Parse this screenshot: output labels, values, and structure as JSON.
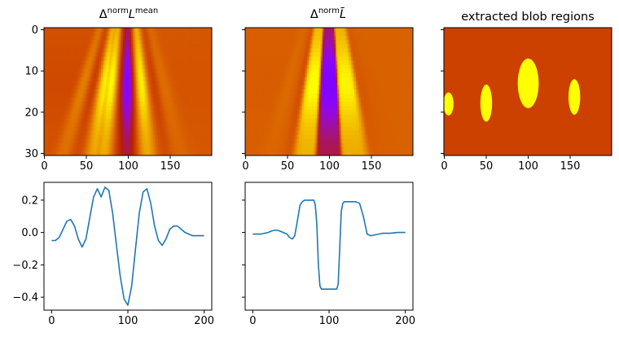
{
  "chart_data": [
    {
      "type": "heatmap",
      "title_base": "Δ",
      "title_sup1": "norm",
      "title_letter": "L",
      "title_sup2": "mean",
      "colormap": "gnuplot",
      "xlim": [
        0,
        199
      ],
      "ylim": [
        30.5,
        -0.5
      ],
      "xticks": [
        0,
        50,
        100,
        150
      ],
      "yticks": [
        0,
        10,
        20,
        30
      ],
      "description_values": {
        "min": -0.45,
        "max": 0.28
      }
    },
    {
      "type": "heatmap",
      "title_base": "Δ",
      "title_sup1": "norm",
      "title_letter": "L̄",
      "colormap": "gnuplot",
      "xlim": [
        0,
        199
      ],
      "ylim": [
        30.5,
        -0.5
      ],
      "xticks": [
        0,
        50,
        100,
        150
      ],
      "yticks": [
        0,
        10,
        20,
        30
      ],
      "description_values": {
        "min": -0.35,
        "max": 0.2
      }
    },
    {
      "type": "heatmap",
      "title": "extracted blob regions",
      "background_color": "#cc4000",
      "blob_color": "#ffff00",
      "xlim": [
        0,
        199
      ],
      "ylim": [
        30.5,
        -0.5
      ],
      "xticks": [
        0,
        50,
        100,
        150
      ],
      "yticks": [
        0,
        10,
        20,
        30
      ],
      "blobs": [
        {
          "x": 5,
          "y": 18,
          "rx": 6,
          "ry": 2.8
        },
        {
          "x": 50,
          "y": 17.8,
          "rx": 7,
          "ry": 4.5
        },
        {
          "x": 100,
          "y": 13,
          "rx": 12.5,
          "ry": 6
        },
        {
          "x": 155,
          "y": 16.3,
          "rx": 7,
          "ry": 4.3
        }
      ]
    },
    {
      "type": "line",
      "color": "#1f77b4",
      "xlim": [
        -10,
        210
      ],
      "ylim": [
        -0.48,
        0.31
      ],
      "xticks": [
        0,
        100,
        200
      ],
      "yticks": [
        -0.4,
        -0.2,
        0.0,
        0.2
      ],
      "ytick_labels": [
        "−0.4",
        "−0.2",
        "0.0",
        "0.2"
      ],
      "x": [
        0,
        5,
        10,
        15,
        20,
        25,
        30,
        35,
        40,
        45,
        50,
        55,
        60,
        65,
        70,
        75,
        80,
        85,
        90,
        95,
        100,
        105,
        110,
        115,
        120,
        125,
        130,
        135,
        140,
        145,
        150,
        155,
        160,
        165,
        170,
        175,
        180,
        185,
        190,
        195,
        200
      ],
      "y": [
        -0.05,
        -0.05,
        -0.03,
        0.02,
        0.07,
        0.08,
        0.04,
        -0.04,
        -0.09,
        -0.04,
        0.09,
        0.22,
        0.27,
        0.22,
        0.28,
        0.26,
        0.12,
        -0.08,
        -0.27,
        -0.41,
        -0.45,
        -0.33,
        -0.1,
        0.12,
        0.25,
        0.27,
        0.18,
        0.04,
        -0.05,
        -0.08,
        -0.04,
        0.02,
        0.04,
        0.04,
        0.02,
        0.0,
        -0.01,
        -0.02,
        -0.02,
        -0.02,
        -0.02
      ]
    },
    {
      "type": "line",
      "color": "#1f77b4",
      "xlim": [
        -10,
        210
      ],
      "ylim": [
        -0.48,
        0.31
      ],
      "xticks": [
        0,
        100,
        200
      ],
      "yticks": [
        -0.4,
        -0.2,
        0.0,
        0.2
      ],
      "x": [
        0,
        10,
        20,
        25,
        30,
        35,
        40,
        45,
        48,
        52,
        55,
        58,
        62,
        65,
        68,
        70,
        75,
        80,
        82,
        84,
        86,
        88,
        90,
        95,
        100,
        105,
        110,
        112,
        114,
        116,
        118,
        120,
        125,
        130,
        135,
        140,
        145,
        150,
        155,
        160,
        170,
        180,
        190,
        200
      ],
      "y": [
        -0.01,
        -0.01,
        0.0,
        0.01,
        0.015,
        0.01,
        0.0,
        -0.01,
        -0.03,
        -0.04,
        -0.02,
        0.06,
        0.17,
        0.19,
        0.2,
        0.2,
        0.2,
        0.2,
        0.17,
        0.05,
        -0.2,
        -0.33,
        -0.35,
        -0.35,
        -0.35,
        -0.35,
        -0.35,
        -0.32,
        -0.1,
        0.13,
        0.18,
        0.19,
        0.19,
        0.19,
        0.19,
        0.18,
        0.1,
        -0.01,
        -0.02,
        -0.015,
        -0.005,
        -0.005,
        0.0,
        0.0
      ]
    }
  ]
}
